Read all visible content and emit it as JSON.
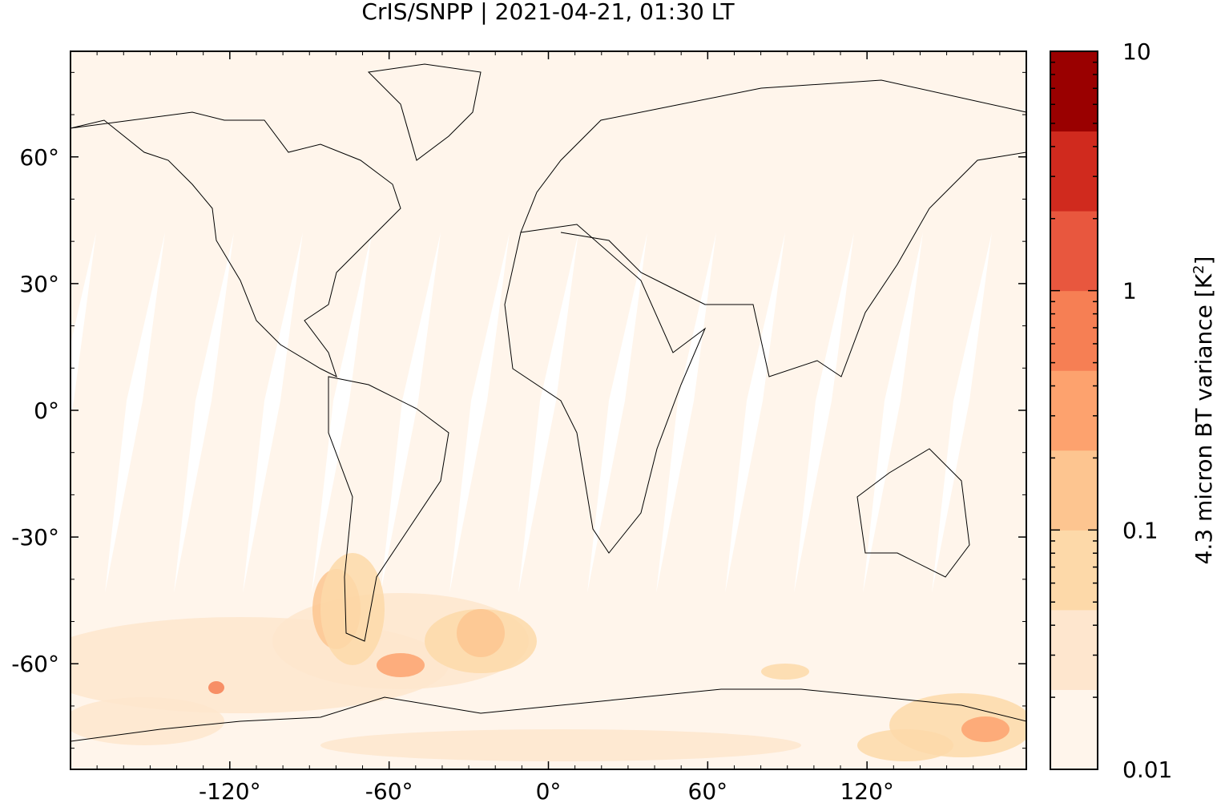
{
  "title": "CrIS/SNPP | 2021-04-21, 01:30 LT",
  "map": {
    "projection": "equirectangular",
    "lon_range": [
      -180,
      180
    ],
    "lat_range": [
      -85,
      85
    ],
    "background_color": "#fff5eb",
    "gap_color": "#ffffff",
    "coastline_color": "#000000",
    "x_ticks": [
      {
        "value": -120,
        "label": "-120°"
      },
      {
        "value": -60,
        "label": "-60°"
      },
      {
        "value": 0,
        "label": "0°"
      },
      {
        "value": 60,
        "label": "60°"
      },
      {
        "value": 120,
        "label": "120°"
      }
    ],
    "y_ticks": [
      {
        "value": 60,
        "label": "60°"
      },
      {
        "value": 30,
        "label": "30°"
      },
      {
        "value": 0,
        "label": "0°"
      },
      {
        "value": -30,
        "label": "-30°"
      },
      {
        "value": -60,
        "label": "-60°"
      }
    ]
  },
  "colorbar": {
    "label": "4.3 micron BT variance [K",
    "label_sup": "2",
    "label_end": "]",
    "scale": "log",
    "range": [
      0.01,
      10
    ],
    "colors": [
      "#fff5eb",
      "#fee6ce",
      "#fdd9a9",
      "#fdc590",
      "#fda26e",
      "#f67f54",
      "#e8573e",
      "#d02a1e",
      "#9a0000"
    ],
    "ticks": [
      {
        "value": 0.01,
        "label": "0.01"
      },
      {
        "value": 0.1,
        "label": "0.1"
      },
      {
        "value": 1,
        "label": "1"
      },
      {
        "value": 10,
        "label": "10"
      }
    ]
  }
}
